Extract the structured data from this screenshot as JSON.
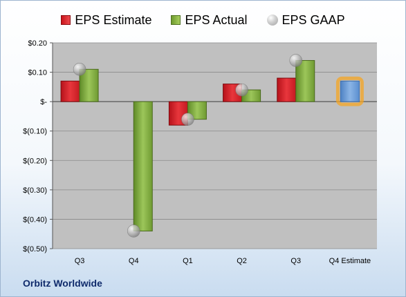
{
  "chart_data": {
    "type": "bar",
    "title": "",
    "xlabel": "",
    "ylabel": "",
    "categories": [
      "Q3",
      "Q4",
      "Q1",
      "Q2",
      "Q3",
      "Q4 Estimate"
    ],
    "ylim": [
      -0.5,
      0.2
    ],
    "yticks": [
      0.2,
      0.1,
      0,
      -0.1,
      -0.2,
      -0.3,
      -0.4,
      -0.5
    ],
    "ytick_labels": [
      "$0.20",
      "$0.10",
      "$-",
      "$(0.10)",
      "$(0.20)",
      "$(0.30)",
      "$(0.40)",
      "$(0.50)"
    ],
    "grid": true,
    "legend_position": "top",
    "series": [
      {
        "name": "EPS Estimate",
        "kind": "bar",
        "color": "#d42027",
        "values": [
          0.07,
          null,
          -0.08,
          0.06,
          0.08,
          0.07
        ]
      },
      {
        "name": "EPS Actual",
        "kind": "bar",
        "color": "#8cb84a",
        "values": [
          0.11,
          -0.44,
          -0.06,
          0.04,
          0.14,
          null
        ]
      },
      {
        "name": "EPS GAAP",
        "kind": "marker",
        "color": "#a0a0a0",
        "values": [
          0.11,
          -0.44,
          -0.06,
          0.04,
          0.14,
          null
        ]
      }
    ],
    "estimate_bar_color": "#6f9fd8",
    "estimate_glow_color": "#f5a623"
  },
  "footer": {
    "company": "Orbitz Worldwide"
  }
}
